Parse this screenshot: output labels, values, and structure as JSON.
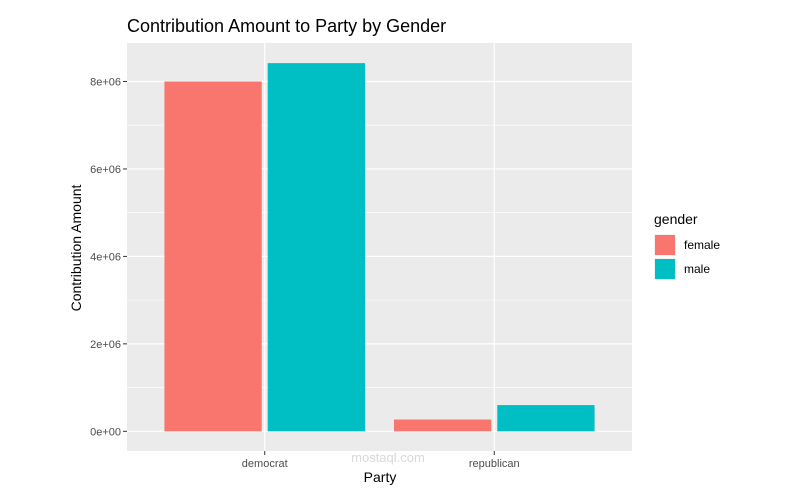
{
  "chart_data": {
    "type": "bar",
    "title": "Contribution Amount to Party by Gender",
    "xlabel": "Party",
    "ylabel": "Contribution Amount",
    "categories": [
      "democrat",
      "republican"
    ],
    "series": [
      {
        "name": "female",
        "values": [
          8000000,
          270000
        ],
        "color": "#F8766D"
      },
      {
        "name": "male",
        "values": [
          8420000,
          600000
        ],
        "color": "#00BFC4"
      }
    ],
    "ylim": [
      -450000,
      8880000
    ],
    "yticks": [
      0,
      2000000,
      4000000,
      6000000,
      8000000
    ],
    "ytick_labels": [
      "0e+00",
      "2e+06",
      "4e+06",
      "6e+06",
      "8e+06"
    ],
    "grid": true,
    "legend": {
      "title": "gender",
      "position": "right"
    }
  },
  "watermark": {
    "text": "mostaql.com"
  }
}
